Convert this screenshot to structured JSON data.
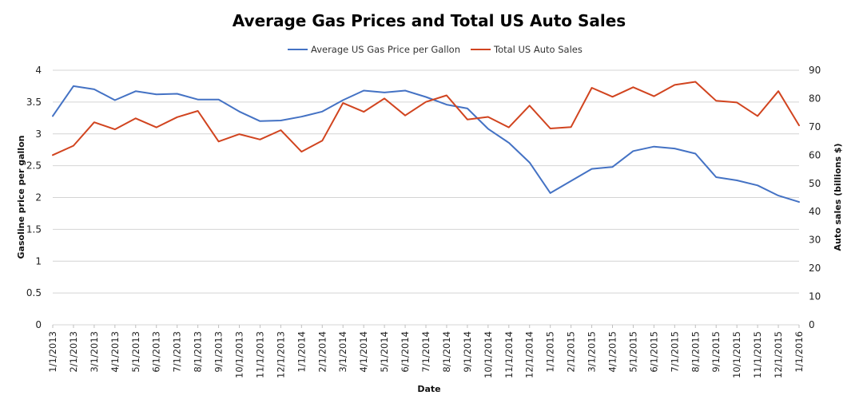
{
  "chart_data": {
    "type": "line",
    "title": "Average Gas Prices and Total US Auto Sales",
    "xlabel": "Date",
    "ylabel": "Gasoline  price per gallon",
    "y2label": "Auto sales (billions $)",
    "ylim": [
      0,
      4
    ],
    "y2lim": [
      0,
      90
    ],
    "yticks": [
      "0",
      "0.5",
      "1",
      "1.5",
      "2",
      "2.5",
      "3",
      "3.5",
      "4"
    ],
    "y2ticks": [
      "0",
      "10",
      "20",
      "30",
      "40",
      "50",
      "60",
      "70",
      "80",
      "90"
    ],
    "grid": true,
    "legend_position": "top-center",
    "categories": [
      "1/1/2013",
      "2/1/2013",
      "3/1/2013",
      "4/1/2013",
      "5/1/2013",
      "6/1/2013",
      "7/1/2013",
      "8/1/2013",
      "9/1/2013",
      "10/1/2013",
      "11/1/2013",
      "12/1/2013",
      "1/1/2014",
      "2/1/2014",
      "3/1/2014",
      "4/1/2014",
      "5/1/2014",
      "6/1/2014",
      "7/1/2014",
      "8/1/2014",
      "9/1/2014",
      "10/1/2014",
      "11/1/2014",
      "12/1/2014",
      "1/1/2015",
      "2/1/2015",
      "3/1/2015",
      "4/1/2015",
      "5/1/2015",
      "6/1/2015",
      "7/1/2015",
      "8/1/2015",
      "9/1/2015",
      "10/1/2015",
      "11/1/2015",
      "12/1/2015",
      "1/1/2016"
    ],
    "series": [
      {
        "name": "Average US Gas Price per Gallon",
        "axis": "left",
        "color": "#4472c4",
        "values": [
          3.28,
          3.75,
          3.7,
          3.53,
          3.67,
          3.62,
          3.63,
          3.54,
          3.54,
          3.35,
          3.2,
          3.21,
          3.27,
          3.35,
          3.53,
          3.68,
          3.65,
          3.68,
          3.58,
          3.46,
          3.4,
          3.08,
          2.86,
          2.55,
          2.07,
          2.26,
          2.45,
          2.48,
          2.73,
          2.8,
          2.77,
          2.69,
          2.32,
          2.27,
          2.19,
          2.03,
          1.93
        ]
      },
      {
        "name": "Total US Auto Sales",
        "axis": "right",
        "color": "#d1441f",
        "values": [
          60.0,
          63.3,
          71.6,
          69.1,
          73.0,
          69.8,
          73.4,
          75.6,
          64.8,
          67.4,
          65.5,
          68.8,
          61.2,
          65.1,
          78.4,
          75.3,
          80.0,
          74.0,
          78.8,
          81.1,
          72.6,
          73.5,
          69.8,
          77.5,
          69.4,
          69.9,
          83.8,
          80.6,
          84.0,
          80.8,
          84.8,
          85.9,
          79.2,
          78.6,
          73.8,
          82.6,
          70.5
        ]
      }
    ]
  }
}
